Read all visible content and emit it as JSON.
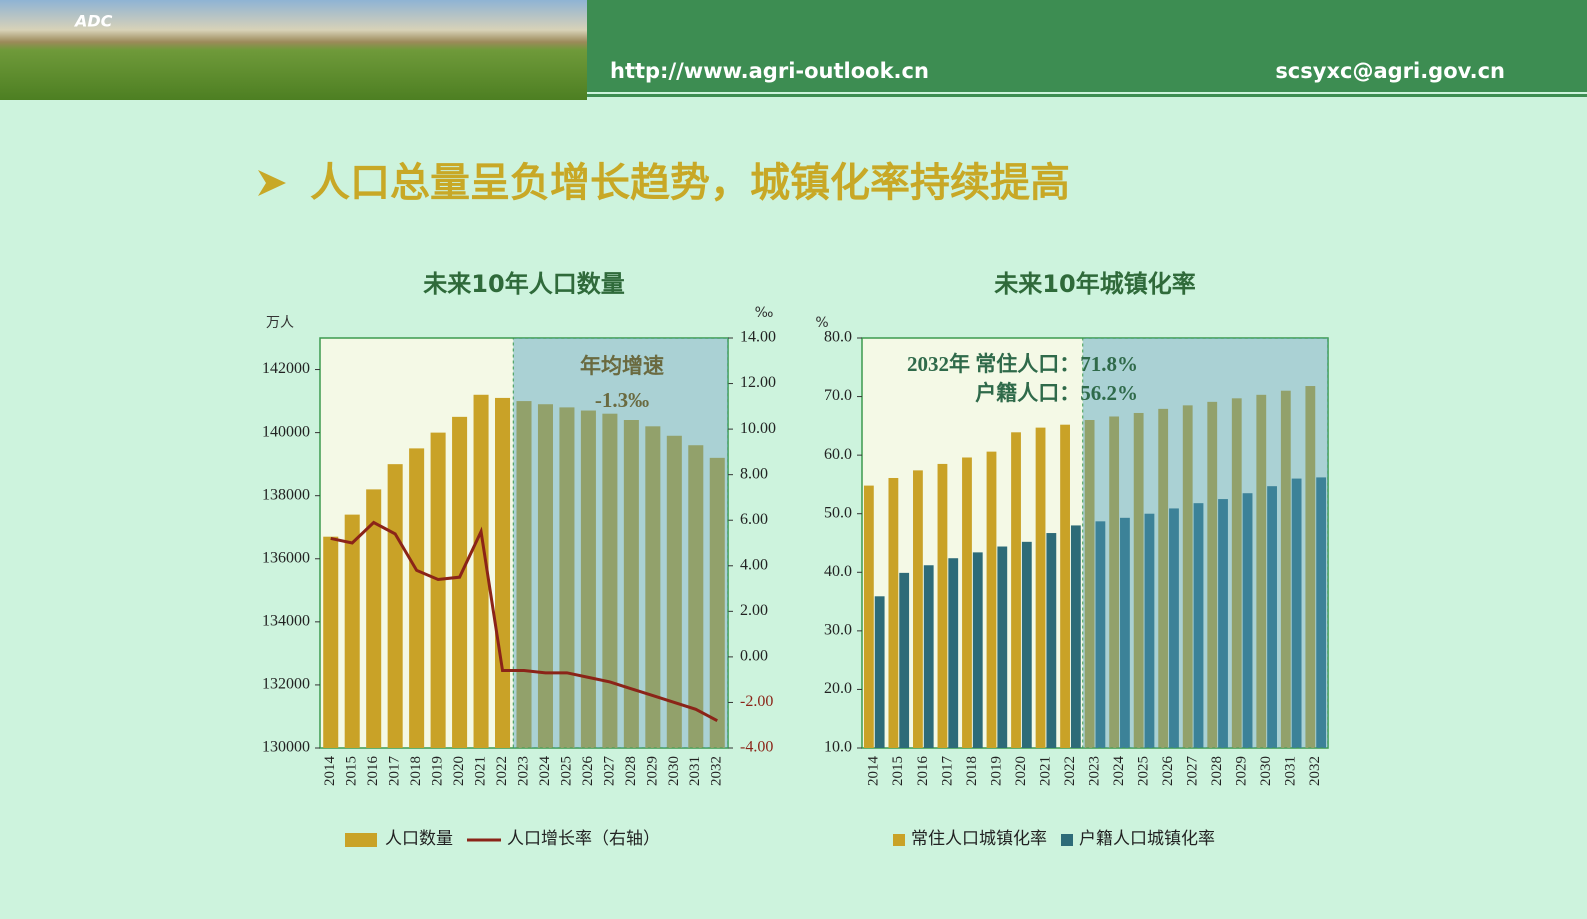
{
  "header": {
    "logo": "ADC",
    "url": "http://www.agri-outlook.cn",
    "email": "scsyxc@agri.gov.cn"
  },
  "title": "人口总量呈负增长趋势，城镇化率持续提高",
  "chart_data": [
    {
      "type": "bar",
      "title": "未来10年人口数量",
      "ylabel": "万人",
      "y2label": "‰",
      "categories": [
        "2014",
        "2015",
        "2016",
        "2017",
        "2018",
        "2019",
        "2020",
        "2021",
        "2022",
        "2023",
        "2024",
        "2025",
        "2026",
        "2027",
        "2028",
        "2029",
        "2030",
        "2031",
        "2032"
      ],
      "series": [
        {
          "name": "人口数量",
          "color": "#c9a227",
          "values": [
            136700,
            137400,
            138200,
            139000,
            139500,
            140000,
            140500,
            141200,
            141100,
            141000,
            140900,
            140800,
            140700,
            140600,
            140400,
            140200,
            139900,
            139600,
            139200
          ]
        },
        {
          "name": "人口增长率（右轴）",
          "color": "#8b2418",
          "type": "line",
          "axis": "y2",
          "values": [
            5.2,
            5.0,
            5.9,
            5.4,
            3.8,
            3.4,
            3.5,
            5.5,
            -0.6,
            -0.6,
            -0.7,
            -0.7,
            -0.9,
            -1.1,
            -1.4,
            -1.7,
            -2.0,
            -2.3,
            -2.8
          ]
        }
      ],
      "ylim": [
        130000,
        143000
      ],
      "yticks": [
        130000,
        132000,
        134000,
        136000,
        138000,
        140000,
        142000
      ],
      "y2lim": [
        -4,
        14
      ],
      "y2ticks": [
        {
          "value": -4,
          "label": "-4.00"
        },
        {
          "value": -2,
          "label": "-2.00"
        },
        {
          "value": 0,
          "label": "0.00"
        },
        {
          "value": 2,
          "label": "2.00"
        },
        {
          "value": 4,
          "label": "4.00"
        },
        {
          "value": 6,
          "label": "6.00"
        },
        {
          "value": 8,
          "label": "8.00"
        },
        {
          "value": 10,
          "label": "10.00"
        },
        {
          "value": 12,
          "label": "12.00"
        },
        {
          "value": 14,
          "label": "14.00"
        }
      ],
      "annotations": [
        "年均增速",
        "-1.3‰"
      ]
    },
    {
      "type": "bar",
      "title": "未来10年城镇化率",
      "ylabel": "%",
      "categories": [
        "2014",
        "2015",
        "2016",
        "2017",
        "2018",
        "2019",
        "2020",
        "2021",
        "2022",
        "2023",
        "2024",
        "2025",
        "2026",
        "2027",
        "2028",
        "2029",
        "2030",
        "2031",
        "2032"
      ],
      "series": [
        {
          "name": "常住人口城镇化率",
          "color": "#c9a227",
          "values": [
            54.8,
            56.1,
            57.4,
            58.5,
            59.6,
            60.6,
            63.9,
            64.7,
            65.2,
            66.0,
            66.6,
            67.2,
            67.9,
            68.5,
            69.1,
            69.7,
            70.3,
            71.0,
            71.8
          ]
        },
        {
          "name": "户籍人口城镇化率",
          "color": "#2d6b78",
          "values": [
            35.9,
            39.9,
            41.2,
            42.4,
            43.4,
            44.4,
            45.2,
            46.7,
            48.0,
            48.7,
            49.3,
            50.0,
            50.9,
            51.8,
            52.5,
            53.5,
            54.7,
            56.0,
            56.2
          ]
        }
      ],
      "ylim": [
        10,
        80
      ],
      "yticks": [
        {
          "value": 10,
          "label": "10.0"
        },
        {
          "value": 20,
          "label": "20.0"
        },
        {
          "value": 30,
          "label": "30.0"
        },
        {
          "value": 40,
          "label": "40.0"
        },
        {
          "value": 50,
          "label": "50.0"
        },
        {
          "value": 60,
          "label": "60.0"
        },
        {
          "value": 70,
          "label": "70.0"
        },
        {
          "value": 80,
          "label": "80.0"
        }
      ],
      "annotations": [
        "2032年 常住人口：71.8%",
        "户籍人口：56.2%"
      ]
    }
  ]
}
